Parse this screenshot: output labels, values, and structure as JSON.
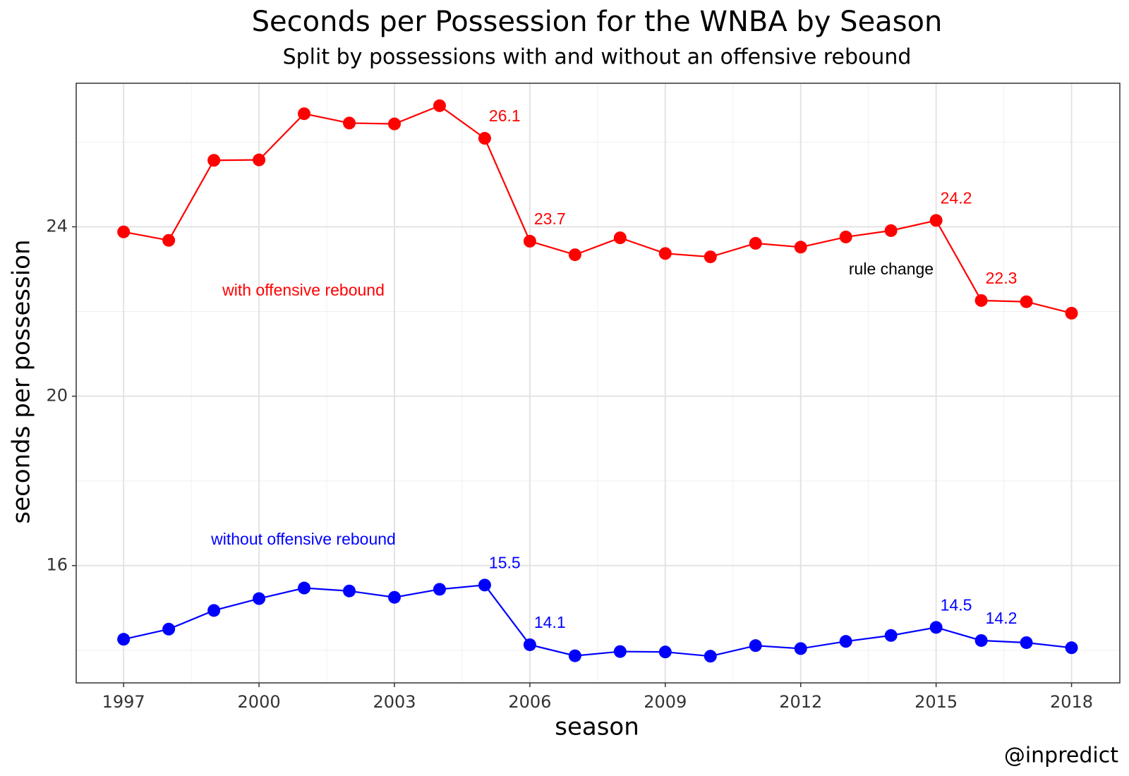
{
  "chart_data": {
    "type": "line",
    "title": "Seconds per Possession for the WNBA by Season",
    "subtitle": "Split by possessions with and without an offensive rebound",
    "x_label": "season",
    "y_label": "seconds per possession",
    "caption": "@inpredict",
    "annotations": [
      "rule change"
    ],
    "x": [
      1997,
      1998,
      1999,
      2000,
      2001,
      2002,
      2003,
      2004,
      2005,
      2006,
      2007,
      2008,
      2009,
      2010,
      2011,
      2012,
      2013,
      2014,
      2015,
      2016,
      2017,
      2018
    ],
    "series": [
      {
        "name": "with offensive rebound",
        "color": "#ff0000",
        "values": [
          23.88,
          23.68,
          25.57,
          25.58,
          26.67,
          26.45,
          26.43,
          26.86,
          26.09,
          23.66,
          23.34,
          23.74,
          23.37,
          23.29,
          23.61,
          23.52,
          23.76,
          23.91,
          24.15,
          22.26,
          22.23,
          21.96
        ],
        "value_labels": [
          null,
          null,
          null,
          null,
          null,
          null,
          null,
          null,
          "26.1",
          "23.7",
          null,
          null,
          null,
          null,
          null,
          null,
          null,
          null,
          "24.2",
          "22.3",
          null,
          null
        ]
      },
      {
        "name": "without offensive rebound",
        "color": "#0000ff",
        "values": [
          14.26,
          14.5,
          14.94,
          15.22,
          15.47,
          15.4,
          15.25,
          15.44,
          15.54,
          14.13,
          13.87,
          13.97,
          13.96,
          13.86,
          14.11,
          14.04,
          14.21,
          14.35,
          14.54,
          14.23,
          14.18,
          14.06
        ],
        "value_labels": [
          null,
          null,
          null,
          null,
          null,
          null,
          null,
          null,
          "15.5",
          "14.1",
          null,
          null,
          null,
          null,
          null,
          null,
          null,
          null,
          "14.5",
          "14.2",
          null,
          null
        ]
      }
    ],
    "xlim": [
      1995.95,
      2019.07
    ],
    "xticks": [
      1997,
      2000,
      2003,
      2006,
      2009,
      2012,
      2015,
      2018
    ],
    "xminor": [
      1998.5,
      2001.5,
      2004.5,
      2007.5,
      2010.5,
      2013.5,
      2016.5
    ],
    "ylim": [
      13.23,
      27.39
    ],
    "yticks": [
      16,
      20,
      24
    ],
    "yminor": [
      14,
      18,
      22,
      26
    ],
    "grid": true
  }
}
